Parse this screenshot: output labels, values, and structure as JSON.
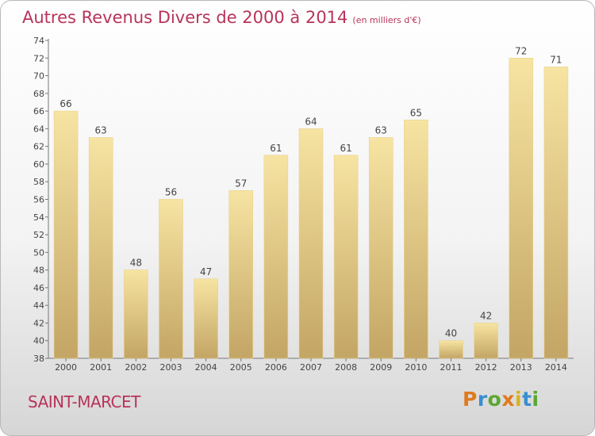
{
  "header": {
    "title": "Autres Revenus Divers de 2000 à 2014",
    "unit": "(en milliers d'€)"
  },
  "footer": {
    "place": "SAINT-MARCET",
    "logo_text": "Proxiti"
  },
  "colors": {
    "title": "#b8335a",
    "bar_light": "#f7e4a2",
    "bar_dark": "#c3a565",
    "axis": "#666666"
  },
  "chart_data": {
    "type": "bar",
    "title": "Autres Revenus Divers de 2000 à 2014",
    "subtitle": "(en milliers d'€)",
    "categories": [
      "2000",
      "2001",
      "2002",
      "2003",
      "2004",
      "2005",
      "2006",
      "2007",
      "2008",
      "2009",
      "2010",
      "2011",
      "2012",
      "2013",
      "2014"
    ],
    "values": [
      66,
      63,
      48,
      56,
      47,
      57,
      61,
      64,
      61,
      63,
      65,
      40,
      42,
      72,
      71
    ],
    "xlabel": "",
    "ylabel": "",
    "ylim": [
      38,
      74
    ],
    "yticks": [
      38,
      40,
      42,
      44,
      46,
      48,
      50,
      52,
      54,
      56,
      58,
      60,
      62,
      64,
      66,
      68,
      70,
      72,
      74
    ],
    "grid": false,
    "legend": "none"
  }
}
